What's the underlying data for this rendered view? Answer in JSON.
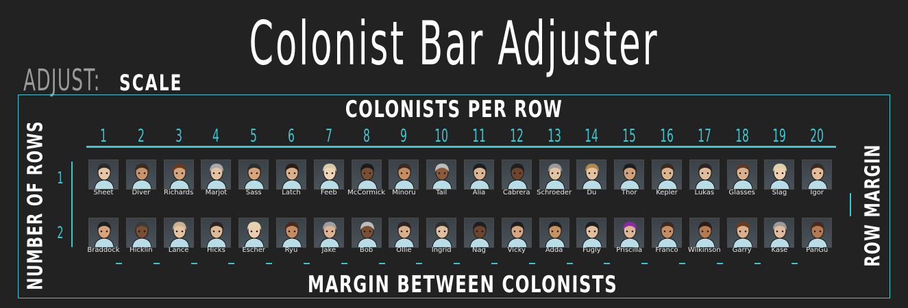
{
  "title": "Colonist Bar Adjuster",
  "adjust_label": "ADJUST:",
  "adjust_mode": "SCALE",
  "colonists_per_row_label": "COLONISTS PER ROW",
  "margin_between_label": "MARGIN BETWEEN COLONISTS",
  "number_of_rows_label": "NUMBER OF ROWS",
  "row_margin_label": "ROW MARGIN",
  "column_numbers": [
    "1",
    "2",
    "3",
    "4",
    "5",
    "6",
    "7",
    "8",
    "9",
    "10",
    "11",
    "12",
    "13",
    "14",
    "15",
    "16",
    "17",
    "18",
    "19",
    "20"
  ],
  "row_numbers": [
    "1",
    "2"
  ],
  "colors": {
    "accent": "#3bc8d0",
    "background": "#222222",
    "muted": "#9a9a9a"
  },
  "rows": [
    {
      "colonists": [
        {
          "name": "Sheet",
          "hair": "#2a2a2a",
          "skin": "#e7c6a6"
        },
        {
          "name": "Diver",
          "hair": "#3b2a20",
          "skin": "#c9936b"
        },
        {
          "name": "Richards",
          "hair": "#6b3a1e",
          "skin": "#d3a47a"
        },
        {
          "name": "Marjot",
          "hair": "#a8a8a8",
          "skin": "#e4c2a0"
        },
        {
          "name": "Sass",
          "hair": "#2e2e2e",
          "skin": "#d8a478"
        },
        {
          "name": "Latch",
          "hair": "#2a1d16",
          "skin": "#d9b08a"
        },
        {
          "name": "Feeb",
          "hair": "#d8c9a8",
          "skin": "#efd4b6"
        },
        {
          "name": "McCormick",
          "hair": "#1a1a1a",
          "skin": "#7a4e33"
        },
        {
          "name": "Minoru",
          "hair": "#3a2a20",
          "skin": "#c68d62"
        },
        {
          "name": "Tail",
          "hair": "#bdbdbd",
          "skin": "#8a5a3a"
        },
        {
          "name": "Alia",
          "hair": "#1e1e1e",
          "skin": "#ddb593"
        },
        {
          "name": "Cabrera",
          "hair": "#1e1e1e",
          "skin": "#6e452c"
        },
        {
          "name": "Schroeder",
          "hair": "#9a9a9a",
          "skin": "#e3c2a2"
        },
        {
          "name": "Du",
          "hair": "#b08a4a",
          "skin": "#e6c3a0"
        },
        {
          "name": "Thor",
          "hair": "#1e1e1e",
          "skin": "#d0a078"
        },
        {
          "name": "Kepler",
          "hair": "#3a2a20",
          "skin": "#dcb48f"
        },
        {
          "name": "Lukas",
          "hair": "#2a2320",
          "skin": "#e1bc9a"
        },
        {
          "name": "Glasses",
          "hair": "#5a3a26",
          "skin": "#dab18c"
        },
        {
          "name": "Slag",
          "hair": "#e0d0a8",
          "skin": "#ecd0b0"
        },
        {
          "name": "Igor",
          "hair": "#3a2a20",
          "skin": "#e3bd98"
        }
      ]
    },
    {
      "colonists": [
        {
          "name": "Braddock",
          "hair": "#1e1e1e",
          "skin": "#d7a47c"
        },
        {
          "name": "Hicklin",
          "hair": "#3a3a3a",
          "skin": "#7a4e33"
        },
        {
          "name": "Lance",
          "hair": "#c9b290",
          "skin": "#e5c2a0"
        },
        {
          "name": "Hicks",
          "hair": "#2a2320",
          "skin": "#dfb995"
        },
        {
          "name": "Escher",
          "hair": "#e6d2b0",
          "skin": "#eacdae"
        },
        {
          "name": "Ryu",
          "hair": "#4a2a1a",
          "skin": "#c68d62"
        },
        {
          "name": "Jake",
          "hair": "#9e9e9e",
          "skin": "#dcb491"
        },
        {
          "name": "Bob",
          "hair": "#bdbdbd",
          "skin": "#7a4e33"
        },
        {
          "name": "Ollie",
          "hair": "#2a2320",
          "skin": "#d9b08a"
        },
        {
          "name": "Ingrid",
          "hair": "#2e2e2e",
          "skin": "#e2bf9c"
        },
        {
          "name": "Nag",
          "hair": "#1e1e1e",
          "skin": "#6e452c"
        },
        {
          "name": "Vicky",
          "hair": "#1e1e1e",
          "skin": "#d6a67e"
        },
        {
          "name": "Adda",
          "hair": "#1e1e1e",
          "skin": "#c7925f"
        },
        {
          "name": "Fugly",
          "hair": "#1e1e1e",
          "skin": "#e3c09d"
        },
        {
          "name": "Priscilla",
          "hair": "#8a2aa8",
          "skin": "#ddb593"
        },
        {
          "name": "Franco",
          "hair": "#3a2a20",
          "skin": "#c68d62"
        },
        {
          "name": "Wilkinson",
          "hair": "#2a1d16",
          "skin": "#b47a50"
        },
        {
          "name": "Garry",
          "hair": "#6b3a1e",
          "skin": "#d9b08a"
        },
        {
          "name": "Kase",
          "hair": "#9a9a9a",
          "skin": "#e1bc9a"
        },
        {
          "name": "PanGu",
          "hair": "#4a2a1a",
          "skin": "#b47a50"
        }
      ]
    }
  ]
}
